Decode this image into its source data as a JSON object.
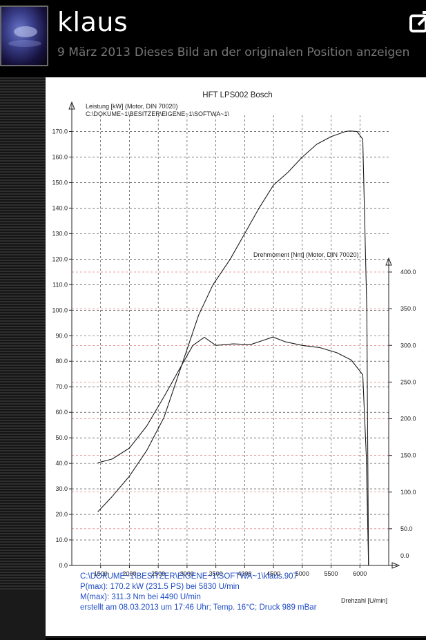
{
  "header": {
    "username": "klaus",
    "date": "9 März 2013",
    "link_text": "Dieses Bild an der originalen Position anzeigen"
  },
  "icons": {
    "share": "share-external-icon",
    "avatar": "avatar-image"
  },
  "colors": {
    "background": "#000000",
    "text": "#ffffff",
    "meta": "#777777",
    "info_text": "#1f4cc6",
    "torque_grid": "#d23c3c"
  },
  "chart_data": {
    "type": "line",
    "title": "HFT LPS002 Bosch",
    "y_left_label": "Leistung [kW] (Motor, DIN 70020)",
    "y_left_path": "C:\\DOKUME~1\\BESITZER\\EIGENE~1\\SOFTWA~1\\",
    "y_right_label": "Drehmoment [Nm] (Motor, DIN 70020)",
    "xlabel": "Drehzahl [U/min]",
    "xlim": [
      1000,
      6500
    ],
    "ylim_left": [
      0,
      175
    ],
    "ylim_right": [
      0,
      400
    ],
    "x_ticks": [
      1500,
      2000,
      2500,
      3000,
      3500,
      4000,
      4500,
      5000,
      5500,
      6000
    ],
    "x_tick_labels": [
      "1500",
      "2000",
      "2500",
      "3000",
      "3500",
      "4000",
      "4500",
      "5000",
      "5500",
      "6000"
    ],
    "y_left_ticks": [
      0,
      10,
      20,
      30,
      40,
      50,
      60,
      70,
      80,
      90,
      100,
      110,
      120,
      130,
      140,
      150,
      160,
      170
    ],
    "y_left_tick_labels": [
      "0.0",
      "10.0",
      "20.0",
      "30.0",
      "40.0",
      "50.0",
      "60.0",
      "70.0",
      "80.0",
      "90.0",
      "100.0",
      "110.0",
      "120.0",
      "130.0",
      "140.0",
      "150.0",
      "160.0",
      "170.0"
    ],
    "y_right_ticks": [
      0,
      50,
      100,
      150,
      200,
      250,
      300,
      350,
      400
    ],
    "y_right_tick_labels": [
      "0.0",
      "50.0",
      "100.0",
      "150.0",
      "200.0",
      "250.0",
      "300.0",
      "350.0",
      "400.0"
    ],
    "grid": true,
    "series": [
      {
        "axis": "left",
        "x": [
          1450,
          1700,
          2000,
          2300,
          2600,
          2900,
          3200,
          3450,
          3750,
          4000,
          4250,
          4500,
          4750,
          5000,
          5250,
          5500,
          5750,
          5830,
          5950,
          6050,
          6120,
          6140,
          6150
        ],
        "y": [
          21,
          27,
          35,
          45,
          58,
          78,
          98,
          110,
          120,
          130,
          140,
          149,
          154,
          160,
          165,
          168,
          170,
          170.2,
          170,
          167,
          100,
          30,
          0
        ]
      },
      {
        "axis": "right",
        "x": [
          1450,
          1700,
          2000,
          2300,
          2600,
          2850,
          3100,
          3300,
          3500,
          3800,
          4100,
          4490,
          4700,
          5000,
          5300,
          5600,
          5850,
          6050,
          6110,
          6150
        ],
        "y": [
          140,
          145,
          160,
          190,
          230,
          265,
          300,
          311,
          300,
          302,
          301,
          311.3,
          305,
          300,
          297,
          290,
          280,
          260,
          150,
          0
        ]
      }
    ],
    "info_lines": [
      "C:\\DOKUME~1\\BESITZER\\EIGENE~1\\SOFTWA~1\\klaus.907",
      "P(max): 170.2 kW (231.5 PS) bei 5830 U/min",
      "M(max): 311.3 Nm bei 4490 U/min",
      "erstellt am 08.03.2013 um 17:46 Uhr; Temp. 16°C; Druck 989 mBar"
    ]
  }
}
